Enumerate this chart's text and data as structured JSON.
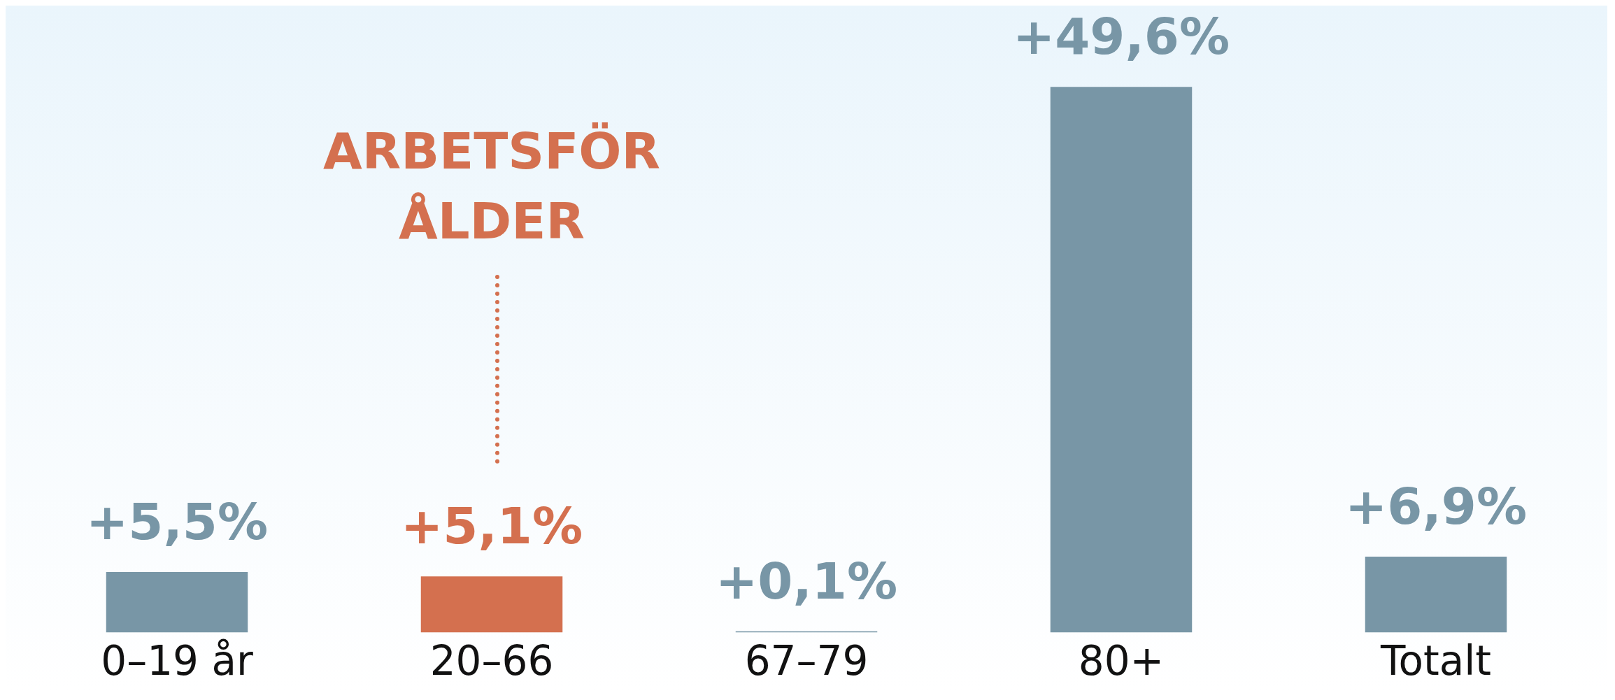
{
  "chart_data": {
    "type": "bar",
    "categories": [
      "0–19 år",
      "20–66",
      "67–79",
      "80+",
      "Totalt"
    ],
    "values": [
      5.5,
      5.1,
      0.1,
      49.6,
      6.9
    ],
    "colors": [
      "#7896a6",
      "#d4704f",
      "#7896a6",
      "#7896a6",
      "#7896a6"
    ],
    "value_labels": [
      "+5,5%",
      "+5,1%",
      "+0,1%",
      "+49,6%",
      "+6,9%"
    ],
    "annotations": [
      "ARBETSFÖR ÅLDER"
    ],
    "grid": false,
    "legend": false
  }
}
